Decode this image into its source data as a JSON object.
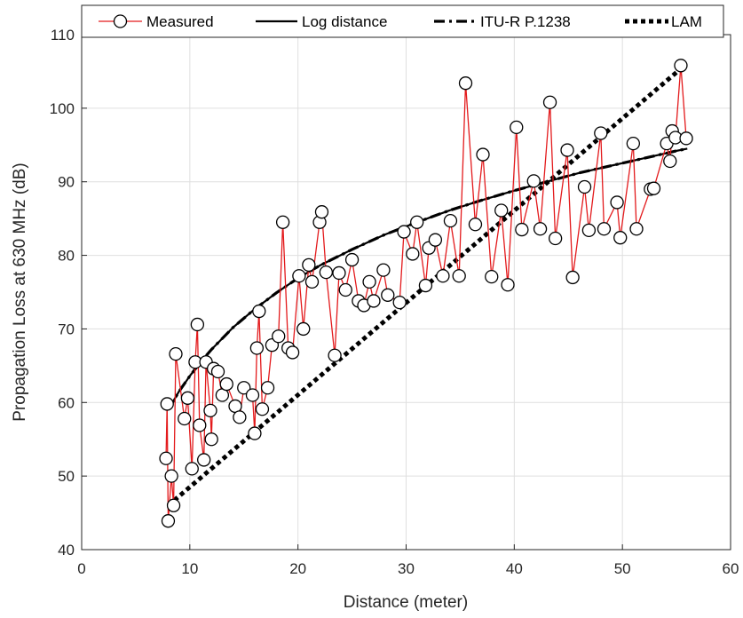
{
  "chart_data": {
    "type": "line",
    "title": "",
    "xlabel": "Distance (meter)",
    "ylabel": "Propagation Loss at 630 MHz (dB)",
    "xlim": [
      0,
      60
    ],
    "ylim": [
      40,
      110
    ],
    "x_ticks": [
      "0",
      "10",
      "20",
      "30",
      "40",
      "50",
      "60"
    ],
    "y_ticks": [
      "40",
      "50",
      "60",
      "70",
      "80",
      "90",
      "100",
      "110"
    ],
    "grid": true,
    "legend_position": "top",
    "series": [
      {
        "name": "Measured",
        "style": "line-circle-markers",
        "color": "#e31a1c",
        "x": [
          7.8,
          7.9,
          8.0,
          8.3,
          8.5,
          8.7,
          9.5,
          9.8,
          10.2,
          10.5,
          10.7,
          10.9,
          11.3,
          11.5,
          11.9,
          12.0,
          12.2,
          12.6,
          13.0,
          13.4,
          14.2,
          14.6,
          15.0,
          15.8,
          16.0,
          16.2,
          16.4,
          16.7,
          17.2,
          17.6,
          18.2,
          18.6,
          19.1,
          19.5,
          20.1,
          20.5,
          21.0,
          21.3,
          22.0,
          22.2,
          22.6,
          23.4,
          23.8,
          24.4,
          25.0,
          25.6,
          26.1,
          26.6,
          27.0,
          27.9,
          28.3,
          29.4,
          29.8,
          30.6,
          31.0,
          31.8,
          32.1,
          32.7,
          33.4,
          34.1,
          34.9,
          35.5,
          36.4,
          37.1,
          37.9,
          38.8,
          39.4,
          40.2,
          40.7,
          41.8,
          42.4,
          43.3,
          43.8,
          44.9,
          45.4,
          46.5,
          46.9,
          48.0,
          48.3,
          49.5,
          49.8,
          51.0,
          51.3,
          52.6,
          52.9,
          54.1,
          54.4,
          54.6,
          54.9,
          55.4,
          55.9
        ],
        "y": [
          52.4,
          59.8,
          43.9,
          50.0,
          46.0,
          66.6,
          57.8,
          60.6,
          51.0,
          65.5,
          70.6,
          56.9,
          52.2,
          65.5,
          58.9,
          55.0,
          64.6,
          64.2,
          61.0,
          62.5,
          59.5,
          58.0,
          62.0,
          61.0,
          55.8,
          67.4,
          72.4,
          59.1,
          62.0,
          67.8,
          69.0,
          84.5,
          67.4,
          66.8,
          77.2,
          70.0,
          78.7,
          76.4,
          84.5,
          85.9,
          77.7,
          66.4,
          77.6,
          75.3,
          79.4,
          73.8,
          73.2,
          76.4,
          73.8,
          78.0,
          74.6,
          73.6,
          83.2,
          80.2,
          84.5,
          75.9,
          81.0,
          82.1,
          77.2,
          84.7,
          77.2,
          103.4,
          84.2,
          93.7,
          77.1,
          86.1,
          76.0,
          97.4,
          83.5,
          90.1,
          83.6,
          100.8,
          82.3,
          94.3,
          77.0,
          89.3,
          83.4,
          96.6,
          83.6,
          87.2,
          82.4,
          95.2,
          83.6,
          89.0,
          89.1,
          95.2,
          92.8,
          96.9,
          96.0,
          105.8,
          95.9
        ]
      },
      {
        "name": "Log distance",
        "style": "solid",
        "color": "#000000",
        "x": [
          8,
          9,
          10,
          11,
          12,
          14,
          16,
          18,
          20,
          22,
          25,
          28,
          31,
          34,
          37,
          40,
          43,
          46,
          49,
          52,
          55,
          56
        ],
        "y": [
          59.0,
          61.5,
          63.6,
          65.5,
          67.2,
          70.2,
          72.7,
          74.9,
          76.9,
          78.6,
          80.8,
          82.8,
          84.5,
          86.1,
          87.5,
          88.8,
          90.0,
          91.2,
          92.2,
          93.2,
          94.2,
          94.5
        ]
      },
      {
        "name": "ITU-R P.1238",
        "style": "dash-dot",
        "color": "#000000",
        "x": [
          8,
          9,
          10,
          11,
          12,
          14,
          16,
          18,
          20,
          22,
          25,
          28,
          31,
          34,
          37,
          40,
          43,
          46,
          49,
          52,
          55,
          56
        ],
        "y": [
          59.0,
          61.5,
          63.6,
          65.5,
          67.2,
          70.2,
          72.7,
          74.9,
          76.9,
          78.6,
          80.8,
          82.8,
          84.5,
          86.1,
          87.5,
          88.8,
          90.0,
          91.2,
          92.2,
          93.2,
          94.2,
          94.5
        ]
      },
      {
        "name": "LAM",
        "style": "dotted",
        "color": "#000000",
        "x": [
          8,
          55.5
        ],
        "y": [
          46.0,
          105.5
        ]
      }
    ]
  }
}
